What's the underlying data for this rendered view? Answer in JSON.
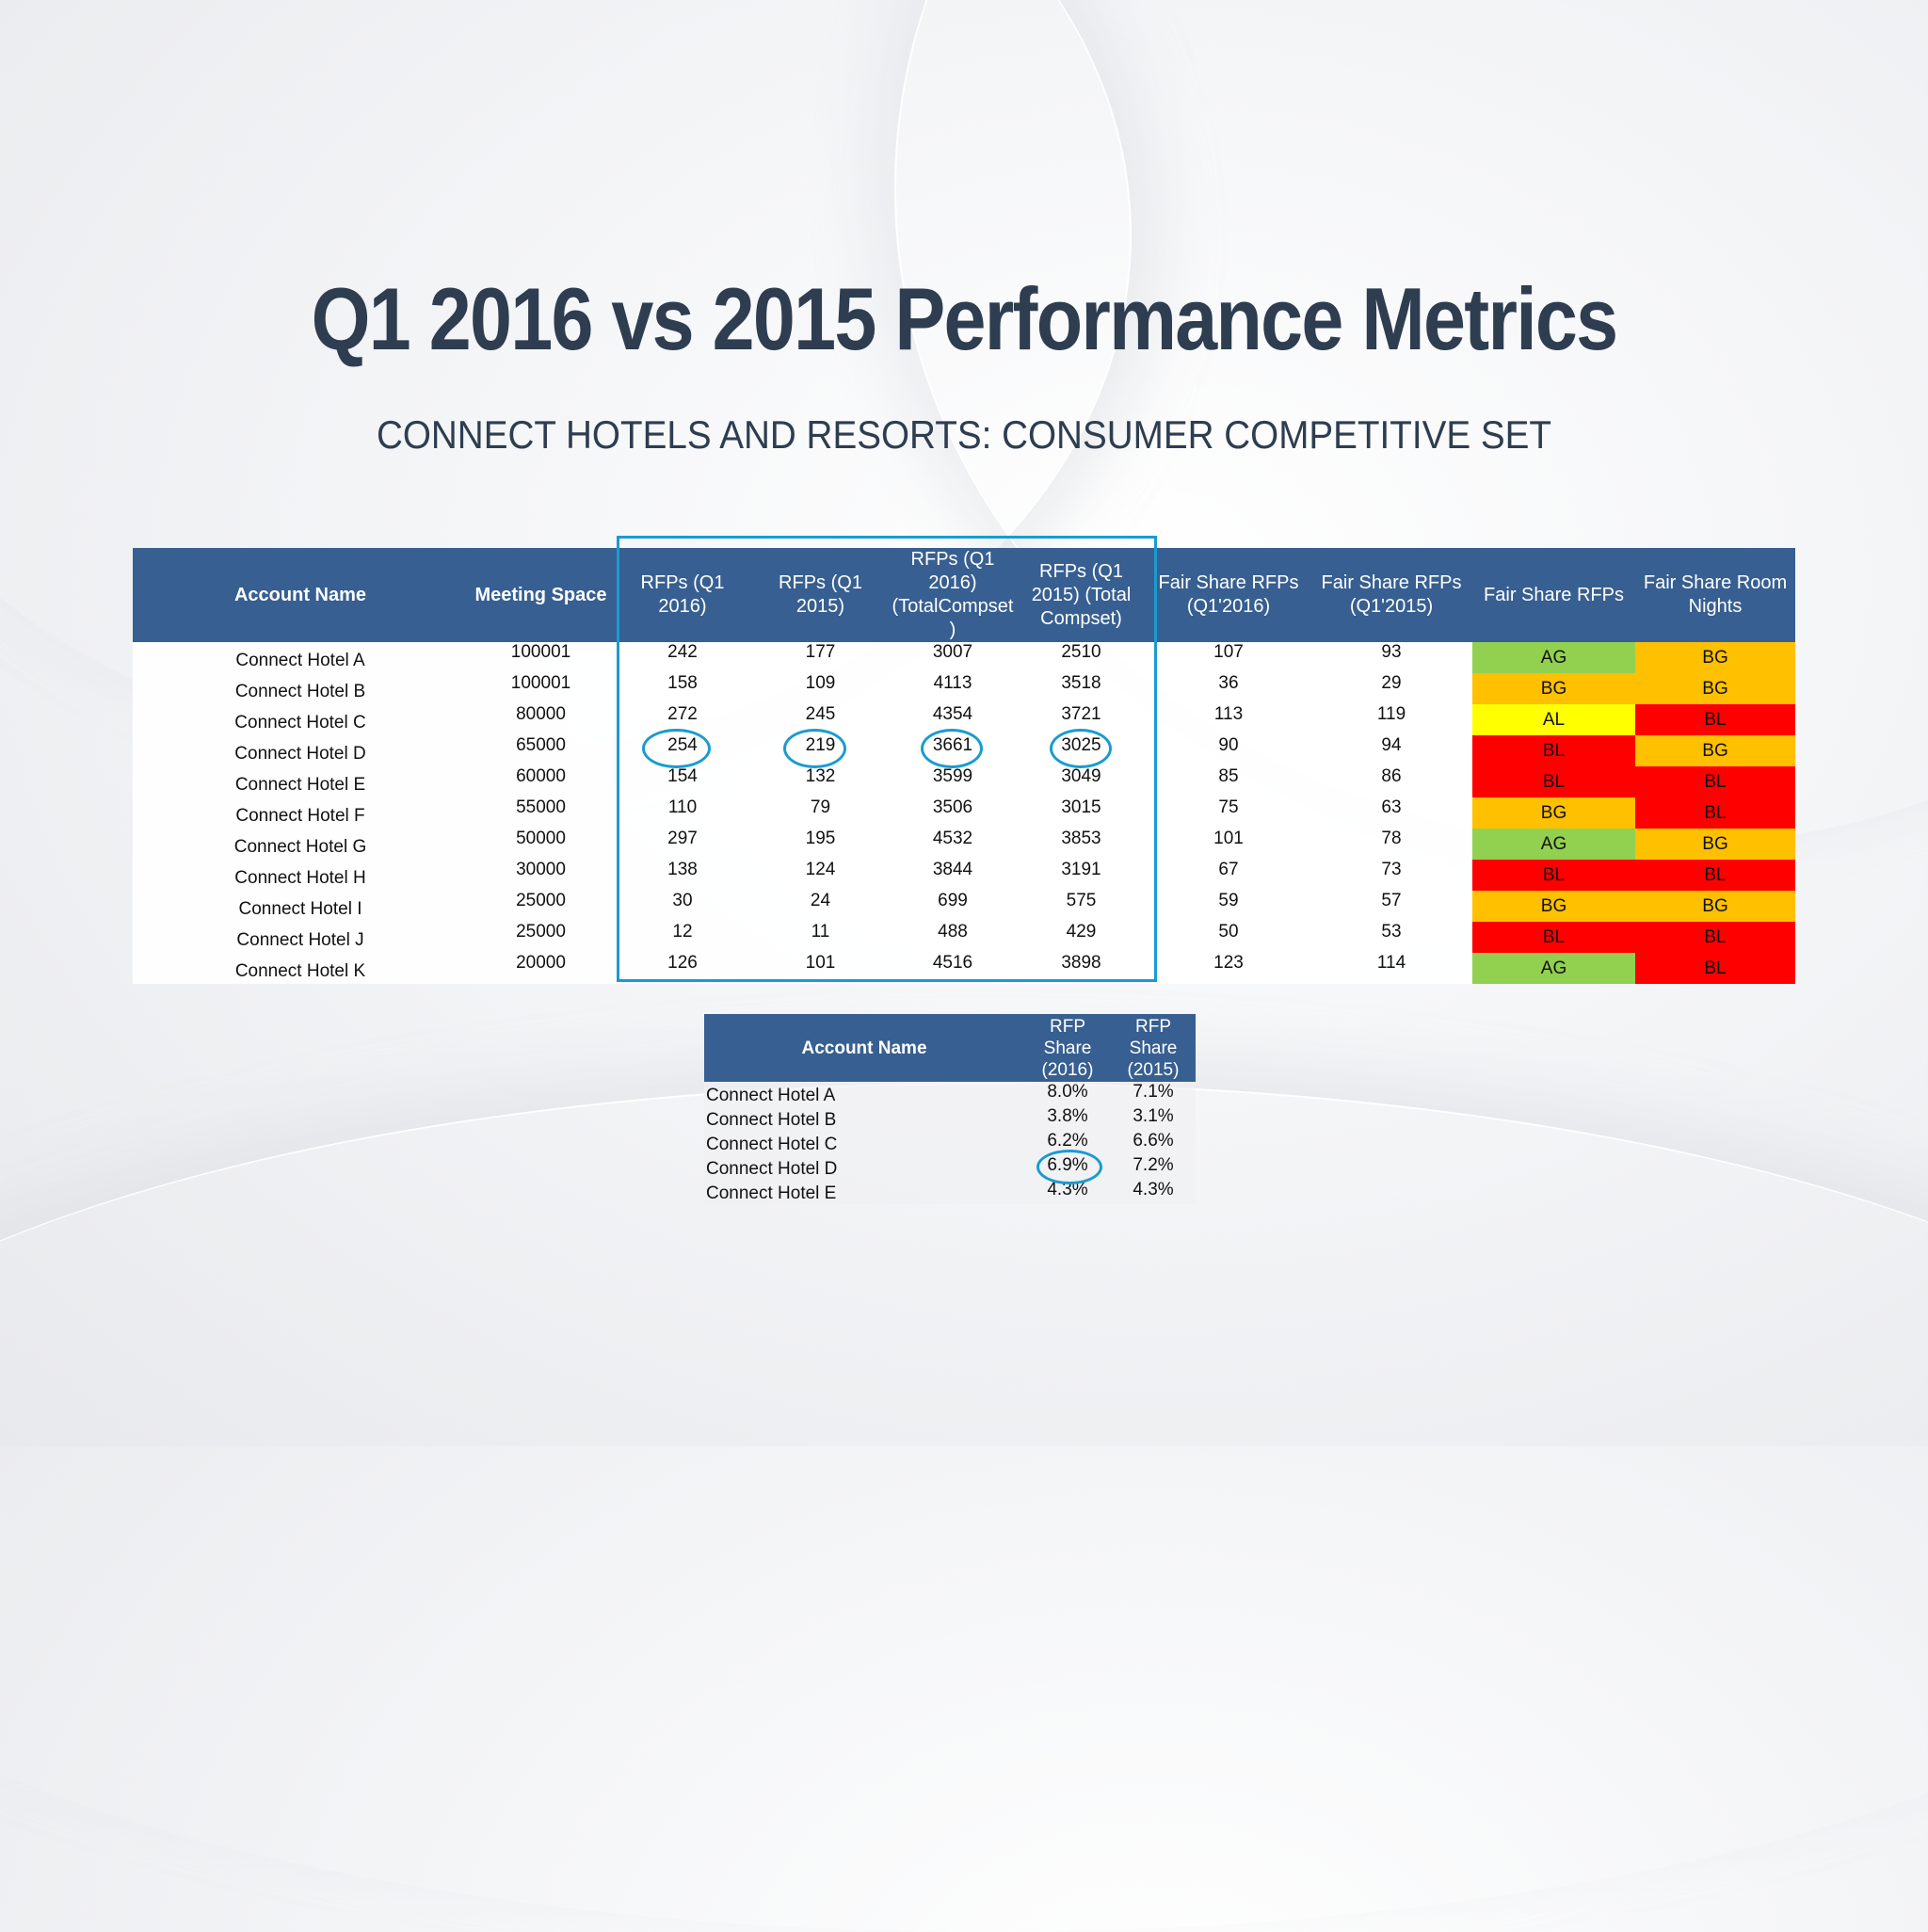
{
  "slide": {
    "title": "Q1 2016 vs 2015 Performance Metrics",
    "subtitle": "CONNECT HOTELS AND RESORTS: CONSUMER COMPETITIVE SET"
  },
  "colors": {
    "header_bg": "#375f91",
    "highlight": "#1a9bd0",
    "AG": "#92d050",
    "BG": "#ffc000",
    "AL": "#ffff00",
    "BL": "#ff0000"
  },
  "main_table": {
    "headers": [
      "Account Name",
      "Meeting Space",
      "RFPs (Q1 2016)",
      "RFPs (Q1 2015)",
      "RFPs (Q1 2016) (TotalCompset )",
      "RFPs (Q1 2015) (Total Compset)",
      "Fair Share RFPs (Q1'2016)",
      "Fair Share RFPs (Q1'2015)",
      "Fair Share RFPs",
      "Fair Share Room Nights"
    ],
    "rows": [
      {
        "name": "Connect Hotel A",
        "space": "100001",
        "rfp16": "242",
        "rfp15": "177",
        "comp16": "3007",
        "comp15": "2510",
        "fs16": "107",
        "fs15": "93",
        "fs_rfps": "AG",
        "fs_rn": "BG"
      },
      {
        "name": "Connect Hotel B",
        "space": "100001",
        "rfp16": "158",
        "rfp15": "109",
        "comp16": "4113",
        "comp15": "3518",
        "fs16": "36",
        "fs15": "29",
        "fs_rfps": "BG",
        "fs_rn": "BG"
      },
      {
        "name": "Connect Hotel C",
        "space": "80000",
        "rfp16": "272",
        "rfp15": "245",
        "comp16": "4354",
        "comp15": "3721",
        "fs16": "113",
        "fs15": "119",
        "fs_rfps": "AL",
        "fs_rn": "BL"
      },
      {
        "name": "Connect Hotel D",
        "space": "65000",
        "rfp16": "254",
        "rfp15": "219",
        "comp16": "3661",
        "comp15": "3025",
        "fs16": "90",
        "fs15": "94",
        "fs_rfps": "BL",
        "fs_rn": "BG"
      },
      {
        "name": "Connect Hotel E",
        "space": "60000",
        "rfp16": "154",
        "rfp15": "132",
        "comp16": "3599",
        "comp15": "3049",
        "fs16": "85",
        "fs15": "86",
        "fs_rfps": "BL",
        "fs_rn": "BL"
      },
      {
        "name": "Connect Hotel F",
        "space": "55000",
        "rfp16": "110",
        "rfp15": "79",
        "comp16": "3506",
        "comp15": "3015",
        "fs16": "75",
        "fs15": "63",
        "fs_rfps": "BG",
        "fs_rn": "BL"
      },
      {
        "name": "Connect Hotel G",
        "space": "50000",
        "rfp16": "297",
        "rfp15": "195",
        "comp16": "4532",
        "comp15": "3853",
        "fs16": "101",
        "fs15": "78",
        "fs_rfps": "AG",
        "fs_rn": "BG"
      },
      {
        "name": "Connect Hotel H",
        "space": "30000",
        "rfp16": "138",
        "rfp15": "124",
        "comp16": "3844",
        "comp15": "3191",
        "fs16": "67",
        "fs15": "73",
        "fs_rfps": "BL",
        "fs_rn": "BL"
      },
      {
        "name": "Connect Hotel I",
        "space": "25000",
        "rfp16": "30",
        "rfp15": "24",
        "comp16": "699",
        "comp15": "575",
        "fs16": "59",
        "fs15": "57",
        "fs_rfps": "BG",
        "fs_rn": "BG"
      },
      {
        "name": "Connect Hotel J",
        "space": "25000",
        "rfp16": "12",
        "rfp15": "11",
        "comp16": "488",
        "comp15": "429",
        "fs16": "50",
        "fs15": "53",
        "fs_rfps": "BL",
        "fs_rn": "BL"
      },
      {
        "name": "Connect Hotel K",
        "space": "20000",
        "rfp16": "126",
        "rfp15": "101",
        "comp16": "4516",
        "comp15": "3898",
        "fs16": "123",
        "fs15": "114",
        "fs_rfps": "AG",
        "fs_rn": "BL"
      }
    ]
  },
  "share_table": {
    "headers": [
      "Account Name",
      "RFP Share (2016)",
      "RFP Share (2015)"
    ],
    "rows": [
      {
        "name": "Connect Hotel A",
        "s16": "8.0%",
        "s15": "7.1%"
      },
      {
        "name": "Connect Hotel B",
        "s16": "3.8%",
        "s15": "3.1%"
      },
      {
        "name": "Connect Hotel C",
        "s16": "6.2%",
        "s15": "6.6%"
      },
      {
        "name": "Connect Hotel D",
        "s16": "6.9%",
        "s15": "7.2%"
      },
      {
        "name": "Connect Hotel E",
        "s16": "4.3%",
        "s15": "4.3%"
      }
    ]
  }
}
